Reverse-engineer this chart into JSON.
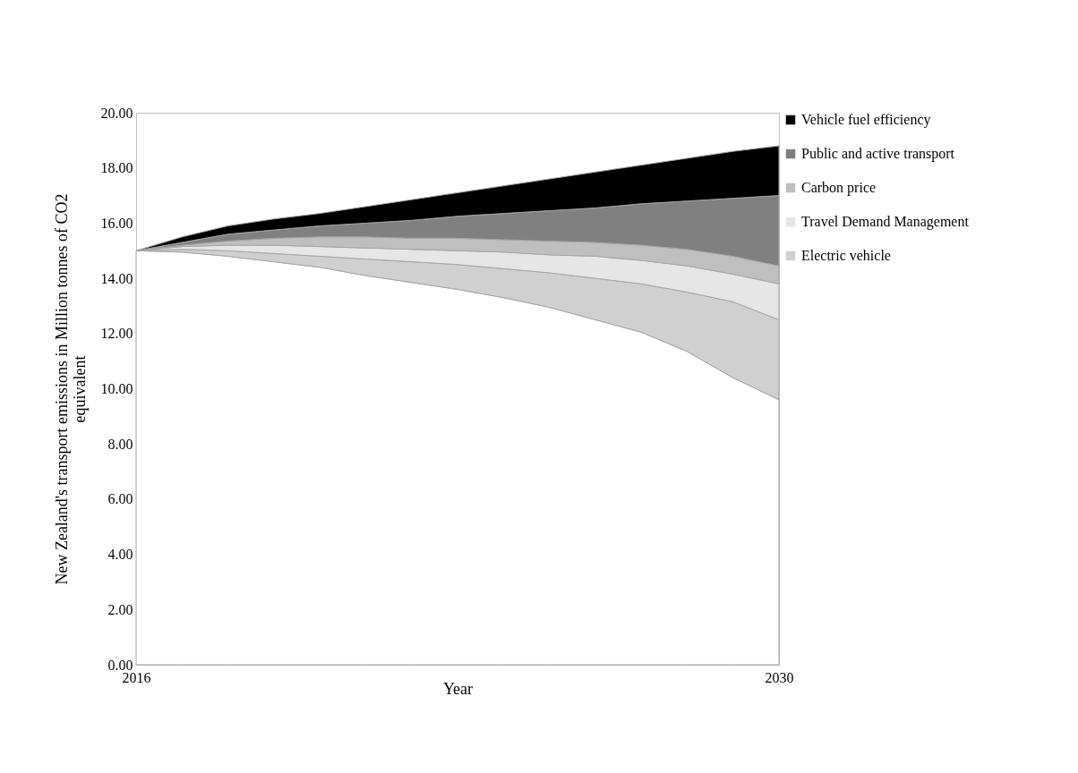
{
  "chart_data": {
    "type": "area",
    "stacked": true,
    "xlabel": "Year",
    "ylabel": "New Zealand's transport emissions in Million tonnes of CO2 equivalent",
    "x": [
      2016,
      2017,
      2018,
      2019,
      2020,
      2021,
      2022,
      2023,
      2024,
      2025,
      2026,
      2027,
      2028,
      2029,
      2030
    ],
    "xlim": [
      2016,
      2030
    ],
    "xticks": [
      2016,
      2030
    ],
    "ylim": [
      0,
      20
    ],
    "yticks": [
      {
        "value": 0,
        "label": "0.00"
      },
      {
        "value": 2,
        "label": "2.00"
      },
      {
        "value": 4,
        "label": "4.00"
      },
      {
        "value": 6,
        "label": "6.00"
      },
      {
        "value": 8,
        "label": "8.00"
      },
      {
        "value": 10,
        "label": "10.00"
      },
      {
        "value": 12,
        "label": "12.00"
      },
      {
        "value": 14,
        "label": "14.00"
      },
      {
        "value": 16,
        "label": "16.00"
      },
      {
        "value": 18,
        "label": "18.00"
      },
      {
        "value": 20,
        "label": "20.00"
      }
    ],
    "grid": false,
    "legend": "right",
    "series": [
      {
        "color": "#ffffff",
        "values": [
          15,
          14.95,
          14.8,
          14.6,
          14.4,
          14.1,
          13.85,
          13.6,
          13.3,
          12.95,
          12.5,
          12.05,
          11.35,
          10.4,
          9.6
        ]
      },
      {
        "name": "Electric vehicle",
        "color": "#d0d0d0",
        "values": [
          0,
          0.1,
          0.2,
          0.3,
          0.4,
          0.6,
          0.75,
          0.9,
          1.05,
          1.25,
          1.5,
          1.75,
          2.15,
          2.75,
          2.9
        ]
      },
      {
        "name": "Travel Demand Management",
        "color": "#e6e6e6",
        "values": [
          0,
          0.1,
          0.2,
          0.3,
          0.35,
          0.4,
          0.45,
          0.5,
          0.6,
          0.65,
          0.8,
          0.85,
          0.95,
          1.0,
          1.3
        ]
      },
      {
        "name": "Carbon price",
        "color": "#bfbfbf",
        "values": [
          0,
          0.05,
          0.15,
          0.25,
          0.35,
          0.4,
          0.4,
          0.45,
          0.45,
          0.5,
          0.5,
          0.55,
          0.6,
          0.65,
          0.65
        ]
      },
      {
        "name": "Public and active transport",
        "color": "#808080",
        "values": [
          0,
          0.1,
          0.25,
          0.3,
          0.4,
          0.5,
          0.65,
          0.8,
          0.95,
          1.1,
          1.25,
          1.5,
          1.75,
          2.1,
          2.55
        ]
      },
      {
        "name": "Vehicle fuel efficiency",
        "color": "#000000",
        "values": [
          0,
          0.2,
          0.3,
          0.4,
          0.45,
          0.6,
          0.75,
          0.85,
          1.0,
          1.15,
          1.3,
          1.4,
          1.55,
          1.7,
          1.8
        ]
      }
    ]
  }
}
